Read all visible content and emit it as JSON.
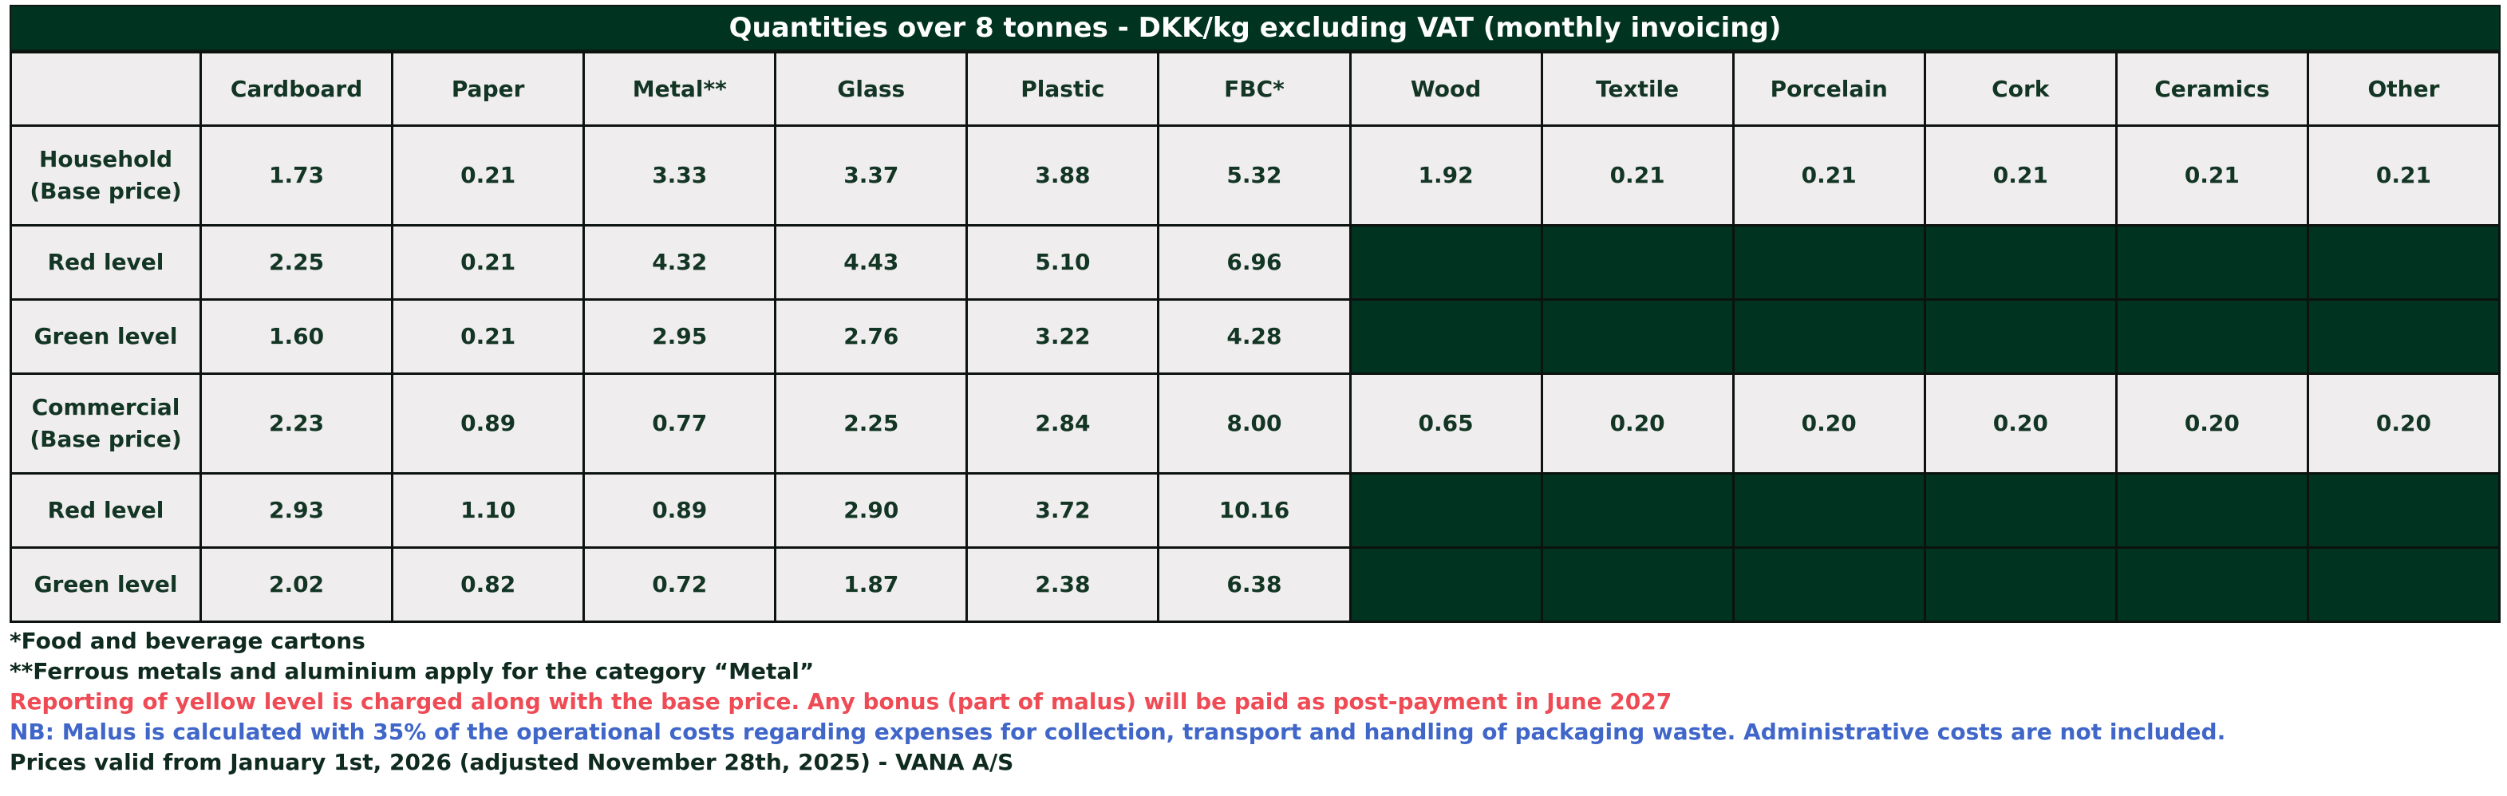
{
  "title": "Quantities over 8 tonnes - DKK/kg excluding VAT (monthly invoicing)",
  "columns": [
    "Cardboard",
    "Paper",
    "Metal**",
    "Glass",
    "Plastic",
    "FBC*",
    "Wood",
    "Textile",
    "Porcelain",
    "Cork",
    "Ceramics",
    "Other"
  ],
  "rows": [
    {
      "label_line1": "Household",
      "label_line2": "(Base price)",
      "values": [
        "1.73",
        "0.21",
        "3.33",
        "3.37",
        "3.88",
        "5.32",
        "1.92",
        "0.21",
        "0.21",
        "0.21",
        "0.21",
        "0.21"
      ]
    },
    {
      "label_line1": "Red level",
      "label_line2": "",
      "values": [
        "2.25",
        "0.21",
        "4.32",
        "4.43",
        "5.10",
        "6.96"
      ]
    },
    {
      "label_line1": "Green level",
      "label_line2": "",
      "values": [
        "1.60",
        "0.21",
        "2.95",
        "2.76",
        "3.22",
        "4.28"
      ]
    },
    {
      "label_line1": "Commercial",
      "label_line2": "(Base price)",
      "values": [
        "2.23",
        "0.89",
        "0.77",
        "2.25",
        "2.84",
        "8.00",
        "0.65",
        "0.20",
        "0.20",
        "0.20",
        "0.20",
        "0.20"
      ]
    },
    {
      "label_line1": "Red level",
      "label_line2": "",
      "values": [
        "2.93",
        "1.10",
        "0.89",
        "2.90",
        "3.72",
        "10.16"
      ]
    },
    {
      "label_line1": "Green level",
      "label_line2": "",
      "values": [
        "2.02",
        "0.82",
        "0.72",
        "1.87",
        "2.38",
        "6.38"
      ]
    }
  ],
  "notes": {
    "fbc": "*Food and beverage cartons",
    "metal": "**Ferrous metals and aluminium apply for the category “Metal”",
    "yellow_level": "Reporting of yellow level is charged along with the base price. Any bonus (part of malus) will be paid as post-payment in June 2027",
    "malus": "NB: Malus is calculated with 35% of the operational costs regarding expenses for collection, transport and handling of packaging waste. Administrative costs are not included.",
    "validity": "Prices valid from January 1st, 2026 (adjusted November 28th, 2025) - VANA A/S"
  },
  "colors": {
    "dark_green": "#003320",
    "cell_bg": "#f0edee",
    "red_note": "#ee4b55",
    "blue_note": "#3f66c8"
  }
}
